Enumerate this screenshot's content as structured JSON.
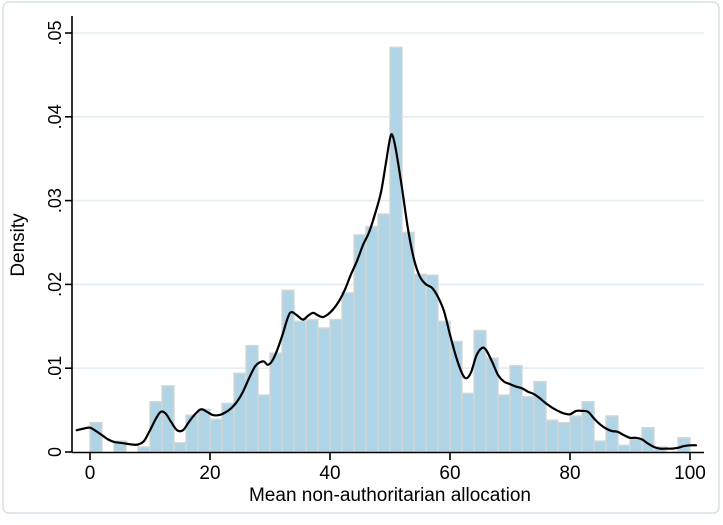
{
  "figure": {
    "background": "#ffffff",
    "border_color": "#ccd9e0"
  },
  "chart_data": {
    "type": "bar",
    "subtype": "histogram_with_kde_overlay",
    "title": "",
    "xlabel": "Mean non-authoritarian allocation",
    "ylabel": "Density",
    "xlim": [
      -3,
      102.5
    ],
    "ylim": [
      0,
      0.05
    ],
    "grid": "horizontal-only",
    "legend": "none",
    "x_ticks": [
      0,
      20,
      40,
      60,
      80,
      100
    ],
    "x_tick_labels": [
      "0",
      "20",
      "40",
      "60",
      "80",
      "100"
    ],
    "y_ticks": [
      0,
      0.01,
      0.02,
      0.03,
      0.04,
      0.05
    ],
    "y_tick_labels": [
      "0",
      ".01",
      ".02",
      ".03",
      ".04",
      ".05"
    ],
    "histogram": {
      "bin_start": 0,
      "bin_width": 2,
      "densities": [
        0.0035,
        0,
        0.0013,
        0,
        0.0006,
        0.006,
        0.0079,
        0.0011,
        0.0044,
        0.0051,
        0.0039,
        0.0058,
        0.0094,
        0.0127,
        0.0068,
        0.0118,
        0.0193,
        0.0156,
        0.0158,
        0.0148,
        0.0158,
        0.019,
        0.0259,
        0.0269,
        0.0284,
        0.0483,
        0.0262,
        0.0212,
        0.0211,
        0.0156,
        0.0132,
        0.007,
        0.0145,
        0.0112,
        0.0068,
        0.0103,
        0.0066,
        0.0084,
        0.0038,
        0.0035,
        0.0043,
        0.006,
        0.0013,
        0.0043,
        0.0008,
        0.0016,
        0.0029,
        0.0006,
        0,
        0.0017
      ]
    },
    "kde_curve": {
      "x": [
        -2.2,
        -1,
        0,
        1,
        2,
        3,
        4,
        5,
        6,
        7,
        8,
        9,
        10,
        11,
        11.8,
        12.6,
        13.5,
        14.5,
        15.5,
        16.5,
        17.5,
        18.5,
        19.5,
        20.5,
        21.5,
        22.5,
        23.5,
        24.5,
        25.5,
        26.5,
        27.5,
        28.3,
        29,
        29.6,
        30.3,
        31,
        32,
        33,
        33.6,
        34.5,
        35.5,
        36.4,
        37.2,
        38,
        38.8,
        39.6,
        40.5,
        41.5,
        42.5,
        43.5,
        44.5,
        45.5,
        46.5,
        47.5,
        48.5,
        49.3,
        50,
        50.4,
        51,
        52,
        53,
        54,
        55,
        56,
        57,
        58,
        59,
        60,
        61,
        62,
        62.7,
        63.5,
        64.4,
        65.3,
        66,
        67,
        68,
        69,
        70,
        71,
        72,
        73,
        74,
        75,
        76,
        77,
        78,
        79,
        80,
        81,
        82,
        83,
        84,
        85,
        86,
        87,
        88,
        89,
        90,
        91,
        92,
        93,
        94,
        95,
        96,
        97,
        98,
        99,
        100,
        101
      ],
      "y": [
        0.0026,
        0.0028,
        0.0029,
        0.0025,
        0.002,
        0.0015,
        0.0012,
        0.0011,
        0.001,
        0.0009,
        0.0009,
        0.0013,
        0.0026,
        0.004,
        0.0048,
        0.0046,
        0.0036,
        0.0026,
        0.0026,
        0.0036,
        0.0045,
        0.0051,
        0.0048,
        0.0044,
        0.0044,
        0.0047,
        0.0052,
        0.006,
        0.0072,
        0.0088,
        0.0102,
        0.0107,
        0.0108,
        0.0104,
        0.0108,
        0.0118,
        0.0138,
        0.0161,
        0.0167,
        0.0163,
        0.0158,
        0.0163,
        0.0166,
        0.0163,
        0.0161,
        0.0164,
        0.017,
        0.018,
        0.0194,
        0.0212,
        0.0228,
        0.0247,
        0.0262,
        0.0284,
        0.031,
        0.0344,
        0.0374,
        0.0378,
        0.036,
        0.0315,
        0.0266,
        0.023,
        0.0209,
        0.02,
        0.0196,
        0.0185,
        0.0168,
        0.014,
        0.0114,
        0.0094,
        0.0088,
        0.0095,
        0.0115,
        0.0124,
        0.0122,
        0.0108,
        0.0092,
        0.0084,
        0.0081,
        0.0078,
        0.0076,
        0.0072,
        0.0069,
        0.0064,
        0.0058,
        0.0053,
        0.0049,
        0.0046,
        0.0045,
        0.0049,
        0.0049,
        0.0048,
        0.004,
        0.0033,
        0.0028,
        0.0025,
        0.0024,
        0.002,
        0.0017,
        0.0017,
        0.0015,
        0.001,
        0.0006,
        0.0004,
        0.0004,
        0.0004,
        0.0005,
        0.0007,
        0.0008,
        0.0008
      ]
    },
    "colors": {
      "bar_fill": "#aed4e5",
      "bar_border": "#d6d6d6",
      "kde_line": "#000000",
      "gridline": "#e4edf4",
      "axis": "#000000",
      "plot_background": "#ffffff"
    }
  }
}
